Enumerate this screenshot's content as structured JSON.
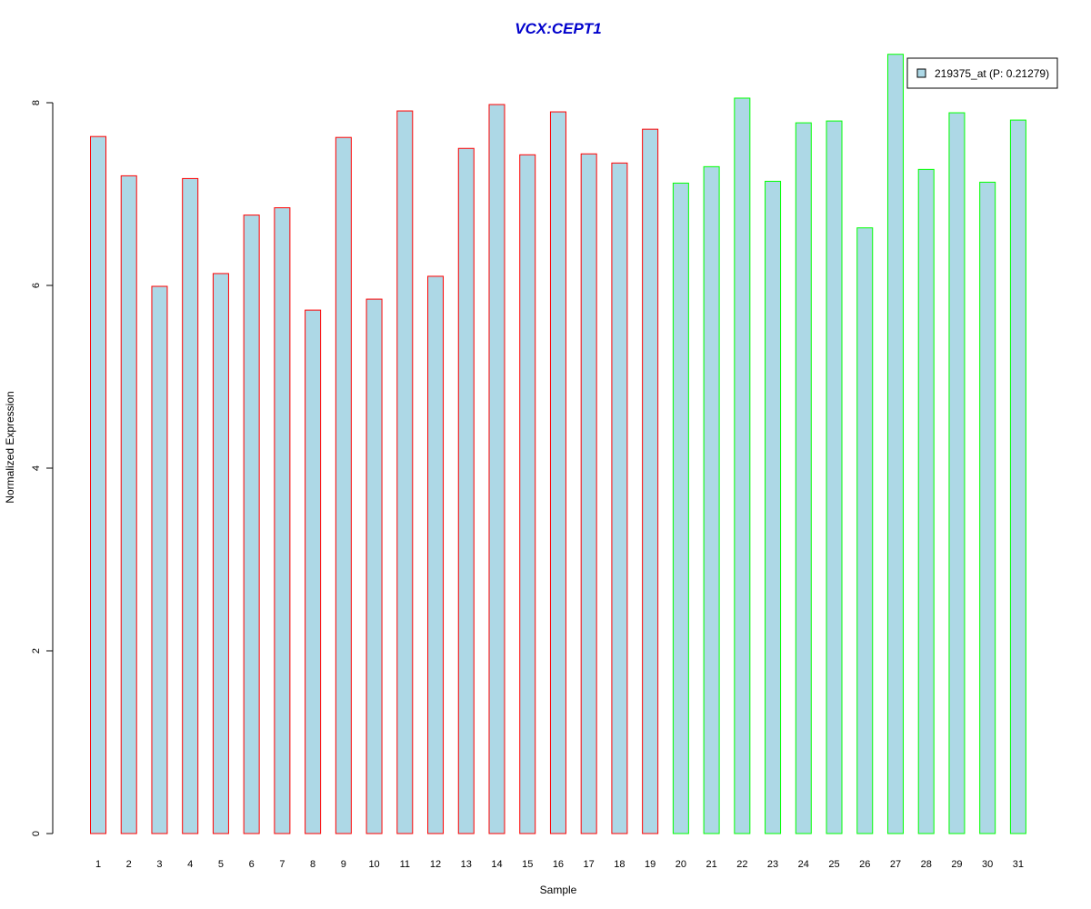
{
  "chart_data": {
    "type": "bar",
    "title": "VCX:CEPT1",
    "xlabel": "Sample",
    "ylabel": "Normalized Expression",
    "categories": [
      "1",
      "2",
      "3",
      "4",
      "5",
      "6",
      "7",
      "8",
      "9",
      "10",
      "11",
      "12",
      "13",
      "14",
      "15",
      "16",
      "17",
      "18",
      "19",
      "20",
      "21",
      "22",
      "23",
      "24",
      "25",
      "26",
      "27",
      "28",
      "29",
      "30",
      "31"
    ],
    "values": [
      7.63,
      7.2,
      5.99,
      7.17,
      6.13,
      6.77,
      6.85,
      5.73,
      7.62,
      5.85,
      7.91,
      6.1,
      7.5,
      7.98,
      7.43,
      7.9,
      7.44,
      7.34,
      7.71,
      7.12,
      7.3,
      8.05,
      7.14,
      7.78,
      7.8,
      6.63,
      8.53,
      7.27,
      7.89,
      7.13,
      7.81
    ],
    "groups": [
      "a",
      "a",
      "a",
      "a",
      "a",
      "a",
      "a",
      "a",
      "a",
      "a",
      "a",
      "a",
      "a",
      "a",
      "a",
      "a",
      "a",
      "a",
      "a",
      "b",
      "b",
      "b",
      "b",
      "b",
      "b",
      "b",
      "b",
      "b",
      "b",
      "b",
      "b"
    ],
    "yticks": [
      0,
      2,
      4,
      6,
      8
    ],
    "ylim": [
      0,
      8.6
    ],
    "legend": {
      "label": "219375_at (P: 0.21279)",
      "position": "top-right"
    },
    "colors": {
      "fill": "#add8e6",
      "group_a_border": "#ff0000",
      "group_b_border": "#00ff00",
      "title": "#0000cc"
    }
  }
}
